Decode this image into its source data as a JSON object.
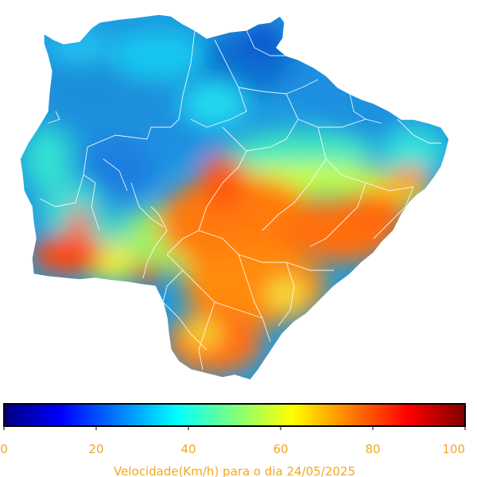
{
  "colorbar": {
    "min": 0,
    "max": 100,
    "ticks": [
      "0",
      "20",
      "40",
      "60",
      "80",
      "100"
    ],
    "caption": "Velocidade(Km/h) para o dia 24/05/2025",
    "colormap": "jet",
    "stops": [
      "#00007f",
      "#0000ff",
      "#007fff",
      "#00ffff",
      "#7fff7f",
      "#ffff00",
      "#ff7f00",
      "#ff0000",
      "#7f0000"
    ],
    "label_color": "#f5a623"
  },
  "map": {
    "boundary_color": "#ffffff",
    "background": "#ffffff"
  }
}
